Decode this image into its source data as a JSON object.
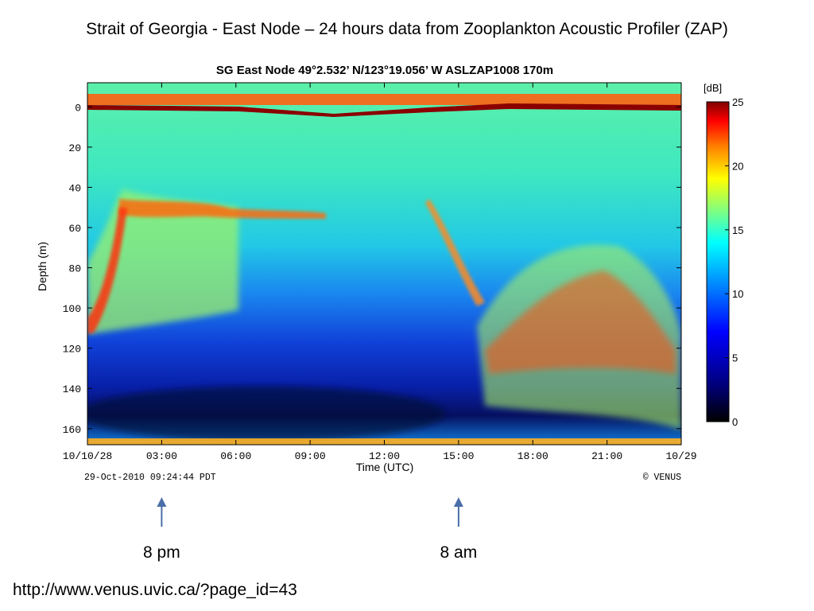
{
  "slide": {
    "title": "Strait of Georgia - East Node – 24 hours data from Zooplankton Acoustic Profiler (ZAP)",
    "annotations": [
      {
        "label": "8 pm",
        "time_utc_hours": 3.0
      },
      {
        "label": "8 am",
        "time_utc_hours": 15.0
      }
    ],
    "url": "http://www.venus.uvic.ca/?page_id=43"
  },
  "chart_data": {
    "type": "heatmap",
    "title": "SG   East Node   49°2.532’ N/123°19.056’ W   ASLZAP1008   170m",
    "xlabel": "Time (UTC)",
    "ylabel": "Depth (m)",
    "x_tick_labels": [
      "10/10/28",
      "03:00",
      "06:00",
      "09:00",
      "12:00",
      "15:00",
      "18:00",
      "21:00",
      "10/29"
    ],
    "x_ticks_hours": [
      0,
      3,
      6,
      9,
      12,
      15,
      18,
      21,
      24
    ],
    "xlim_hours": [
      0,
      24
    ],
    "y_ticks": [
      0,
      20,
      40,
      60,
      80,
      100,
      120,
      140,
      160
    ],
    "ylim": [
      -12,
      168
    ],
    "y_inverted": true,
    "colorbar": {
      "label": "[dB]",
      "ticks": [
        0,
        5,
        10,
        15,
        20,
        25
      ],
      "range": [
        0,
        25
      ]
    },
    "footer_left": "29-Oct-2010 09:24:44 PDT",
    "footer_right": "© VENUS"
  }
}
